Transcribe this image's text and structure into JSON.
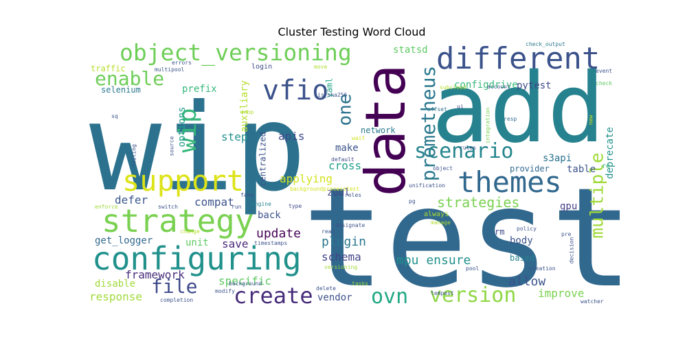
{
  "chart_data": {
    "type": "wordcloud",
    "title": "Cluster Testing Word Cloud",
    "words": [
      {
        "text": "test",
        "weight": 100,
        "color": "#31688e",
        "vertical": false
      },
      {
        "text": "wip",
        "weight": 90,
        "color": "#2c728e",
        "vertical": false
      },
      {
        "text": "add",
        "weight": 80,
        "color": "#26828e",
        "vertical": false
      },
      {
        "text": "data",
        "weight": 72,
        "color": "#440154",
        "vertical": true
      },
      {
        "text": "different",
        "weight": 40,
        "color": "#3b528b",
        "vertical": false
      },
      {
        "text": "configuring",
        "weight": 40,
        "color": "#21918c",
        "vertical": false
      },
      {
        "text": "strategy",
        "weight": 38,
        "color": "#7ad151",
        "vertical": false
      },
      {
        "text": "support",
        "weight": 36,
        "color": "#dde318",
        "vertical": false
      },
      {
        "text": "themes",
        "weight": 36,
        "color": "#31688e",
        "vertical": false
      },
      {
        "text": "vfio",
        "weight": 36,
        "color": "#3b528b",
        "vertical": false
      },
      {
        "text": "object_versioning",
        "weight": 30,
        "color": "#6ece58",
        "vertical": false
      },
      {
        "text": "version",
        "weight": 30,
        "color": "#8fd744",
        "vertical": false
      },
      {
        "text": "create",
        "weight": 28,
        "color": "#472d7b",
        "vertical": false
      },
      {
        "text": "prometheus",
        "weight": 26,
        "color": "#2a788e",
        "vertical": true
      },
      {
        "text": "wip",
        "weight": 26,
        "color": "#35b779",
        "vertical": true
      },
      {
        "text": "scenario",
        "weight": 26,
        "color": "#25858e",
        "vertical": false
      },
      {
        "text": "multiple",
        "weight": 26,
        "color": "#a0da39",
        "vertical": true
      },
      {
        "text": "ovn",
        "weight": 26,
        "color": "#22a884",
        "vertical": false
      },
      {
        "text": "file",
        "weight": 24,
        "color": "#3e4989",
        "vertical": false
      },
      {
        "text": "enable",
        "weight": 24,
        "color": "#6ece58",
        "vertical": false
      },
      {
        "text": "one",
        "weight": 22,
        "color": "#2c728e",
        "vertical": true
      },
      {
        "text": "strategies",
        "weight": 20,
        "color": "#7ad151",
        "vertical": false
      },
      {
        "text": "update",
        "weight": 18,
        "color": "#440154",
        "vertical": false
      },
      {
        "text": "plugin",
        "weight": 18,
        "color": "#2a788e",
        "vertical": false
      },
      {
        "text": "mpu ensure",
        "weight": 18,
        "color": "#21918c",
        "vertical": false
      },
      {
        "text": "allow",
        "weight": 16,
        "color": "#3b528b",
        "vertical": false
      },
      {
        "text": "framework",
        "weight": 16,
        "color": "#472d7b",
        "vertical": false
      },
      {
        "text": "specific",
        "weight": 16,
        "color": "#5ec962",
        "vertical": false
      },
      {
        "text": "save",
        "weight": 16,
        "color": "#482878",
        "vertical": false
      },
      {
        "text": "schema",
        "weight": 16,
        "color": "#414487",
        "vertical": false
      },
      {
        "text": "applying",
        "weight": 16,
        "color": "#d2e21b",
        "vertical": false
      },
      {
        "text": "cross",
        "weight": 16,
        "color": "#1f9e89",
        "vertical": false
      },
      {
        "text": "compat",
        "weight": 16,
        "color": "#3b528b",
        "vertical": false
      },
      {
        "text": "defer",
        "weight": 16,
        "color": "#39568c",
        "vertical": false
      },
      {
        "text": "apis",
        "weight": 16,
        "color": "#3e4989",
        "vertical": false
      },
      {
        "text": "step",
        "weight": 16,
        "color": "#21918c",
        "vertical": false
      },
      {
        "text": "improve",
        "weight": 16,
        "color": "#7ad151",
        "vertical": false
      },
      {
        "text": "response",
        "weight": 16,
        "color": "#a0da39",
        "vertical": false
      },
      {
        "text": "vendor",
        "weight": 14,
        "color": "#3b528b",
        "vertical": false
      },
      {
        "text": "zuul",
        "weight": 14,
        "color": "#414487",
        "vertical": false
      },
      {
        "text": "back",
        "weight": 14,
        "color": "#3b528b",
        "vertical": false
      },
      {
        "text": "body",
        "weight": 14,
        "color": "#3b528b",
        "vertical": false
      },
      {
        "text": "gpu",
        "weight": 14,
        "color": "#433e85",
        "vertical": false
      },
      {
        "text": "table",
        "weight": 14,
        "color": "#3b528b",
        "vertical": false
      },
      {
        "text": "deprecate",
        "weight": 14,
        "color": "#21918c",
        "vertical": true
      },
      {
        "text": "make",
        "weight": 14,
        "color": "#3b528b",
        "vertical": false
      },
      {
        "text": "options",
        "weight": 14,
        "color": "#1f9e89",
        "vertical": true
      },
      {
        "text": "auxiliary",
        "weight": 14,
        "color": "#b5de2b",
        "vertical": true
      },
      {
        "text": "prefix",
        "weight": 14,
        "color": "#35b779",
        "vertical": false
      },
      {
        "text": "configdrive",
        "weight": 14,
        "color": "#35b779",
        "vertical": false
      },
      {
        "text": "statsd",
        "weight": 14,
        "color": "#5ec962",
        "vertical": false
      },
      {
        "text": "pytest",
        "weight": 14,
        "color": "#3e4989",
        "vertical": false
      },
      {
        "text": "s3api",
        "weight": 14,
        "color": "#2c728e",
        "vertical": false
      },
      {
        "text": "disable",
        "weight": 14,
        "color": "#a0da39",
        "vertical": false
      },
      {
        "text": "unit",
        "weight": 14,
        "color": "#5ec962",
        "vertical": false
      },
      {
        "text": "get_logger",
        "weight": 14,
        "color": "#31688e",
        "vertical": false
      },
      {
        "text": "rm",
        "weight": 12,
        "color": "#3e4989",
        "vertical": false
      },
      {
        "text": "based",
        "weight": 12,
        "color": "#26828e",
        "vertical": false
      },
      {
        "text": "provider",
        "weight": 12,
        "color": "#31688e",
        "vertical": false
      },
      {
        "text": "network",
        "weight": 12,
        "color": "#2a788e",
        "vertical": false
      },
      {
        "text": "centralized",
        "weight": 12,
        "color": "#3b528b",
        "vertical": true
      },
      {
        "text": "yaml",
        "weight": 12,
        "color": "#20a486",
        "vertical": true
      },
      {
        "text": "selenium",
        "weight": 12,
        "color": "#2a788e",
        "vertical": false
      },
      {
        "text": "traffic",
        "weight": 12,
        "color": "#b5de2b",
        "vertical": false
      },
      {
        "text": "login",
        "weight": 10,
        "color": "#3e4989",
        "vertical": false
      },
      {
        "text": "always",
        "weight": 10,
        "color": "#addc30",
        "vertical": false
      },
      {
        "text": "re",
        "weight": 10,
        "color": "#35b779",
        "vertical": false
      },
      {
        "text": "ui",
        "weight": 8,
        "color": "#3e4989",
        "vertical": false
      },
      {
        "text": "check_output",
        "weight": 8,
        "color": "#2a788e",
        "vertical": false
      },
      {
        "text": "is_sha256",
        "weight": 8,
        "color": "#3b528b",
        "vertical": false
      },
      {
        "text": "offset",
        "weight": 8,
        "color": "#2c728e",
        "vertical": false
      },
      {
        "text": "account",
        "weight": 8,
        "color": "#3b528b",
        "vertical": false
      },
      {
        "text": "event",
        "weight": 8,
        "color": "#3b528b",
        "vertical": false
      },
      {
        "text": "subcloud",
        "weight": 8,
        "color": "#b5de2b",
        "vertical": false
      },
      {
        "text": "check",
        "weight": 8,
        "color": "#5ec962",
        "vertical": false
      },
      {
        "text": "integration",
        "weight": 8,
        "color": "#7ad151",
        "vertical": true
      },
      {
        "text": "resp",
        "weight": 8,
        "color": "#31688e",
        "vertical": false
      },
      {
        "text": "new",
        "weight": 8,
        "color": "#d2e21b",
        "vertical": true
      },
      {
        "text": "object",
        "weight": 8,
        "color": "#3b528b",
        "vertical": false
      },
      {
        "text": "unification",
        "weight": 8,
        "color": "#3b528b",
        "vertical": false
      },
      {
        "text": "rules",
        "weight": 8,
        "color": "#3b528b",
        "vertical": false
      },
      {
        "text": "default",
        "weight": 8,
        "color": "#3e4989",
        "vertical": false
      },
      {
        "text": "backgroundprocesstest",
        "weight": 8,
        "color": "#d2e21b",
        "vertical": false
      },
      {
        "text": "fake",
        "weight": 8,
        "color": "#3b528b",
        "vertical": false
      },
      {
        "text": "roles",
        "weight": 8,
        "color": "#3b528b",
        "vertical": false
      },
      {
        "text": "engine",
        "weight": 8,
        "color": "#26828e",
        "vertical": false
      },
      {
        "text": "type",
        "weight": 8,
        "color": "#3e4989",
        "vertical": false
      },
      {
        "text": "pg",
        "weight": 8,
        "color": "#3b528b",
        "vertical": false
      },
      {
        "text": "designate",
        "weight": 8,
        "color": "#3b528b",
        "vertical": false
      },
      {
        "text": "real",
        "weight": 8,
        "color": "#3b528b",
        "vertical": false
      },
      {
        "text": "manage",
        "weight": 8,
        "color": "#addc30",
        "vertical": false
      },
      {
        "text": "policy",
        "weight": 8,
        "color": "#3b528b",
        "vertical": false
      },
      {
        "text": "decision",
        "weight": 8,
        "color": "#3b528b",
        "vertical": true
      },
      {
        "text": "pre",
        "weight": 8,
        "color": "#3b528b",
        "vertical": false
      },
      {
        "text": "creation",
        "weight": 8,
        "color": "#3b528b",
        "vertical": false
      },
      {
        "text": "pool",
        "weight": 8,
        "color": "#3b528b",
        "vertical": false
      },
      {
        "text": "versioning",
        "weight": 8,
        "color": "#a0da39",
        "vertical": false
      },
      {
        "text": "tasks",
        "weight": 8,
        "color": "#a0da39",
        "vertical": false
      },
      {
        "text": "delete",
        "weight": 8,
        "color": "#3b528b",
        "vertical": false
      },
      {
        "text": "tempest",
        "weight": 8,
        "color": "#3b528b",
        "vertical": false
      },
      {
        "text": "watcher",
        "weight": 8,
        "color": "#3b528b",
        "vertical": false
      },
      {
        "text": "timestamps",
        "weight": 8,
        "color": "#3b528b",
        "vertical": false
      },
      {
        "text": "background",
        "weight": 8,
        "color": "#3b528b",
        "vertical": false
      },
      {
        "text": "modify",
        "weight": 8,
        "color": "#3b528b",
        "vertical": false
      },
      {
        "text": "completion",
        "weight": 8,
        "color": "#3b528b",
        "vertical": false
      },
      {
        "text": "change",
        "weight": 8,
        "color": "#b5de2b",
        "vertical": false
      },
      {
        "text": "run",
        "weight": 8,
        "color": "#3b528b",
        "vertical": false
      },
      {
        "text": "enforce",
        "weight": 8,
        "color": "#a0da39",
        "vertical": false
      },
      {
        "text": "switch",
        "weight": 8,
        "color": "#3b528b",
        "vertical": false
      },
      {
        "text": "failing",
        "weight": 8,
        "color": "#3b528b",
        "vertical": true
      },
      {
        "text": "source",
        "weight": 8,
        "color": "#3b528b",
        "vertical": true
      },
      {
        "text": "sq",
        "weight": 8,
        "color": "#3b528b",
        "vertical": false
      },
      {
        "text": "drop",
        "weight": 8,
        "color": "#addc30",
        "vertical": false
      },
      {
        "text": "errors",
        "weight": 8,
        "color": "#3b528b",
        "vertical": false
      },
      {
        "text": "multipool",
        "weight": 8,
        "color": "#3b528b",
        "vertical": false
      },
      {
        "text": "move",
        "weight": 8,
        "color": "#addc30",
        "vertical": false
      },
      {
        "text": "wait",
        "weight": 8,
        "color": "#d2e21b",
        "vertical": false
      }
    ]
  }
}
